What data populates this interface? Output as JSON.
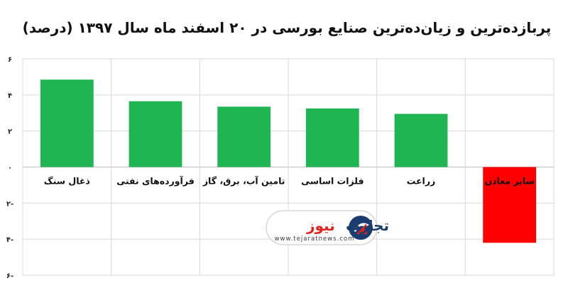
{
  "chart_data": {
    "type": "bar",
    "title": "پربازده‌ترین و زیان‌ده‌ترین صنایع بورسی در ۲۰ اسفند ماه سال ۱۳۹۷ (درصد)",
    "categories": [
      "ذغال سنگ",
      "فرآورده‌های نفتی",
      "تامین آب، برق، گاز",
      "فلزات اساسی",
      "زراعت",
      "سایر معادن"
    ],
    "values": [
      4.85,
      3.65,
      3.35,
      3.25,
      2.95,
      -4.2
    ],
    "ylim": [
      -6,
      6
    ],
    "yticks": [
      6,
      4,
      2,
      0,
      -2,
      -4,
      -6
    ],
    "ytick_labels": [
      "۶",
      "۴",
      "۲",
      "۰",
      "۲-",
      "۴-",
      "۶-"
    ],
    "colors": {
      "positive": "#1fb552",
      "negative": "#ff0000",
      "grid": "#d9d9d9"
    },
    "grid": true,
    "legend": "none"
  },
  "watermark": {
    "name_part1": "تجارت",
    "name_part2": "نیوز",
    "url": "www.tejaratnews.com",
    "logo": "tejaratnews-logo-icon"
  }
}
